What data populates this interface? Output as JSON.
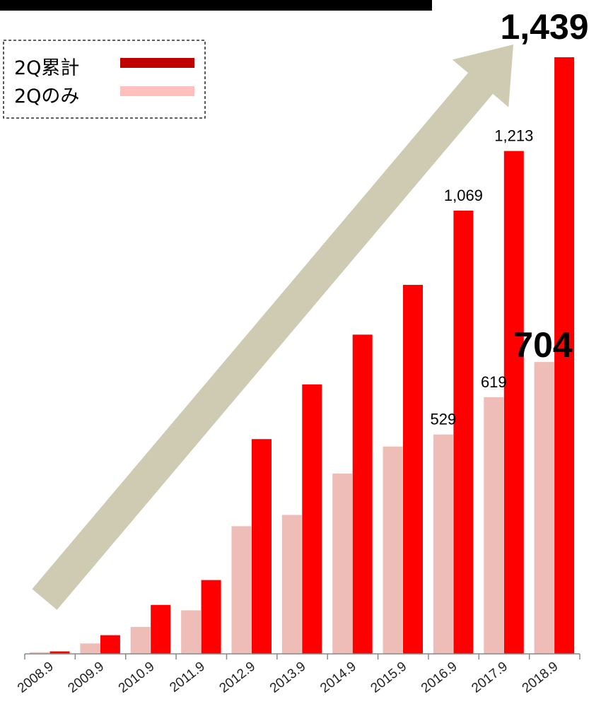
{
  "chart_data": {
    "type": "bar",
    "categories": [
      "2008.9",
      "2009.9",
      "2010.9",
      "2011.9",
      "2012.9",
      "2013.9",
      "2014.9",
      "2015.9",
      "2016.9",
      "2017.9",
      "2018.9"
    ],
    "series": [
      {
        "name": "2Qのみ",
        "color": "#efbdb8",
        "values": [
          4,
          25,
          65,
          105,
          308,
          335,
          435,
          500,
          529,
          619,
          704
        ]
      },
      {
        "name": "2Q累計",
        "color": "#ff0000",
        "values": [
          6,
          45,
          118,
          178,
          518,
          650,
          770,
          890,
          1069,
          1213,
          1439
        ]
      }
    ],
    "data_labels": [
      {
        "series": 1,
        "index": 8,
        "text": "1,069",
        "bold": false
      },
      {
        "series": 1,
        "index": 9,
        "text": "1,213",
        "bold": false
      },
      {
        "series": 1,
        "index": 10,
        "text": "1,439",
        "bold": true
      },
      {
        "series": 0,
        "index": 8,
        "text": "529",
        "bold": false
      },
      {
        "series": 0,
        "index": 9,
        "text": "619",
        "bold": false
      },
      {
        "series": 0,
        "index": 10,
        "text": "704",
        "bold": true
      }
    ],
    "legend": {
      "placement": "top-left",
      "entries": [
        {
          "label": "2Q累計",
          "color": "#c00000"
        },
        {
          "label": "2Qのみ",
          "color": "#ffbfbf"
        }
      ]
    },
    "ylim": [
      0,
      1439
    ],
    "grid": false,
    "trend_arrow_color": "#cfcab2",
    "title_bar_color": "#000000"
  }
}
